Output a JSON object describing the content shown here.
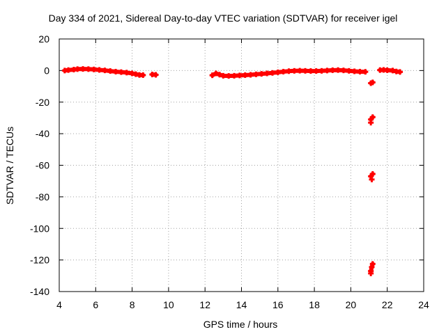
{
  "chart_data": {
    "type": "scatter",
    "title": "Day 334 of 2021, Sidereal Day-to-day VTEC variation (SDTVAR) for receiver igel",
    "xlabel": "GPS time / hours",
    "ylabel": "SDTVAR / TECUs",
    "xlim": [
      4,
      24
    ],
    "ylim": [
      -140,
      20
    ],
    "x_ticks": [
      "4",
      "6",
      "8",
      "10",
      "12",
      "14",
      "16",
      "18",
      "20",
      "22",
      "24"
    ],
    "y_ticks": [
      "20",
      "0",
      "-20",
      "-40",
      "-60",
      "-80",
      "-100",
      "-120",
      "-140"
    ],
    "grid": true,
    "marker": "plus",
    "series_color": "#ff0000",
    "series": [
      {
        "points": [
          [
            4.3,
            0.0
          ],
          [
            4.5,
            0.3
          ],
          [
            4.8,
            0.6
          ],
          [
            5.0,
            0.9
          ],
          [
            5.3,
            1.0
          ],
          [
            5.6,
            0.9
          ],
          [
            5.9,
            0.7
          ],
          [
            6.2,
            0.4
          ],
          [
            6.5,
            0.1
          ],
          [
            6.8,
            -0.3
          ],
          [
            7.1,
            -0.7
          ],
          [
            7.4,
            -1.0
          ],
          [
            7.7,
            -1.3
          ],
          [
            8.0,
            -1.8
          ],
          [
            8.2,
            -2.3
          ],
          [
            8.4,
            -2.8
          ],
          [
            8.6,
            -2.9
          ],
          [
            9.1,
            -2.5
          ],
          [
            9.3,
            -2.7
          ],
          [
            12.4,
            -3.0
          ],
          [
            12.6,
            -1.8
          ],
          [
            12.8,
            -2.6
          ],
          [
            13.0,
            -3.3
          ],
          [
            13.3,
            -3.4
          ],
          [
            13.6,
            -3.3
          ],
          [
            13.9,
            -3.1
          ],
          [
            14.2,
            -2.9
          ],
          [
            14.5,
            -2.7
          ],
          [
            14.8,
            -2.4
          ],
          [
            15.1,
            -2.1
          ],
          [
            15.4,
            -1.8
          ],
          [
            15.7,
            -1.5
          ],
          [
            16.0,
            -1.1
          ],
          [
            16.3,
            -0.7
          ],
          [
            16.6,
            -0.4
          ],
          [
            16.9,
            -0.2
          ],
          [
            17.2,
            -0.1
          ],
          [
            17.5,
            -0.2
          ],
          [
            17.8,
            -0.3
          ],
          [
            18.1,
            -0.3
          ],
          [
            18.4,
            -0.2
          ],
          [
            18.7,
            0.0
          ],
          [
            19.0,
            0.2
          ],
          [
            19.3,
            0.3
          ],
          [
            19.6,
            0.1
          ],
          [
            19.9,
            -0.2
          ],
          [
            20.2,
            -0.5
          ],
          [
            20.5,
            -0.7
          ],
          [
            20.8,
            -0.8
          ],
          [
            21.1,
            -8.0
          ],
          [
            21.2,
            -7.5
          ],
          [
            21.1,
            -31.0
          ],
          [
            21.2,
            -29.5
          ],
          [
            21.1,
            -33.0
          ],
          [
            21.1,
            -67.0
          ],
          [
            21.2,
            -65.5
          ],
          [
            21.15,
            -69.0
          ],
          [
            21.1,
            -127.0
          ],
          [
            21.15,
            -124.5
          ],
          [
            21.2,
            -122.5
          ],
          [
            21.1,
            -128.5
          ],
          [
            21.6,
            0.3
          ],
          [
            21.8,
            0.4
          ],
          [
            22.0,
            0.2
          ],
          [
            22.3,
            0.0
          ],
          [
            22.5,
            -0.6
          ],
          [
            22.7,
            -0.9
          ]
        ]
      }
    ]
  }
}
